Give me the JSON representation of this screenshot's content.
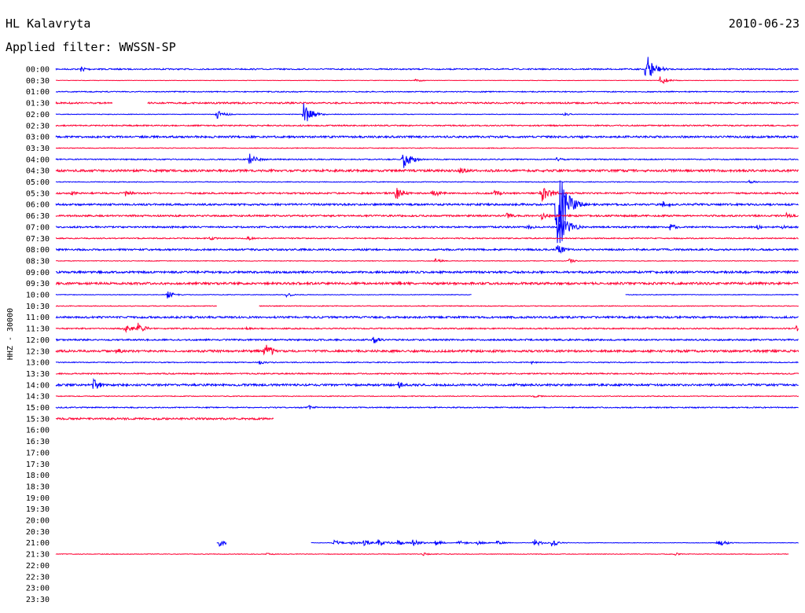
{
  "header": {
    "station": "HL Kalavryta",
    "date": "2010-06-23",
    "filter": "Applied filter: WWSSN-SP"
  },
  "chart_data": {
    "type": "line",
    "title": "",
    "ylabel": "HHZ - 30000",
    "colors": {
      "even_row": "#0000ff",
      "odd_row": "#ff0033"
    },
    "tick_labels": [
      "00:00",
      "00:30",
      "01:00",
      "01:30",
      "02:00",
      "02:30",
      "03:00",
      "03:30",
      "04:00",
      "04:30",
      "05:00",
      "05:30",
      "06:00",
      "06:30",
      "07:00",
      "07:30",
      "08:00",
      "08:30",
      "09:00",
      "09:30",
      "10:00",
      "10:30",
      "11:00",
      "11:30",
      "12:00",
      "12:30",
      "13:00",
      "13:30",
      "14:00",
      "14:30",
      "15:00",
      "15:30",
      "16:00",
      "16:30",
      "17:00",
      "17:30",
      "18:00",
      "18:30",
      "19:00",
      "19:30",
      "20:00",
      "20:30",
      "21:00",
      "21:30",
      "22:00",
      "22:30",
      "23:00",
      "23:30"
    ],
    "x_range_minutes": [
      0,
      30
    ],
    "traces": [
      {
        "row": "00:00",
        "start": 0,
        "end": 30,
        "noise": 0.8,
        "events": [
          {
            "t": 1.0,
            "amp": 4
          },
          {
            "t": 23.8,
            "amp": 24
          }
        ]
      },
      {
        "row": "00:30",
        "start": 0,
        "end": 30,
        "noise": 0.3,
        "events": [
          {
            "t": 14.5,
            "amp": 2
          },
          {
            "t": 24.4,
            "amp": 6
          }
        ]
      },
      {
        "row": "01:00",
        "start": 0,
        "end": 30,
        "noise": 0.6,
        "events": []
      },
      {
        "row": "01:30",
        "start": 0,
        "end": 30,
        "noise": 1.0,
        "events": [
          {
            "t": 14.5,
            "amp": 2
          }
        ],
        "gaps": [
          [
            2.3,
            3.7
          ]
        ]
      },
      {
        "row": "02:00",
        "start": 0,
        "end": 30,
        "noise": 0.4,
        "events": [
          {
            "t": 6.5,
            "amp": 6
          },
          {
            "t": 10.0,
            "amp": 15
          },
          {
            "t": 20.5,
            "amp": 2
          }
        ]
      },
      {
        "row": "02:30",
        "start": 0,
        "end": 30,
        "noise": 0.8,
        "events": []
      },
      {
        "row": "03:00",
        "start": 0,
        "end": 30,
        "noise": 1.2,
        "events": [
          {
            "t": 21.2,
            "amp": 2
          }
        ]
      },
      {
        "row": "03:30",
        "start": 0,
        "end": 30,
        "noise": 0.5,
        "events": []
      },
      {
        "row": "04:00",
        "start": 0,
        "end": 30,
        "noise": 0.7,
        "events": [
          {
            "t": 7.8,
            "amp": 8
          },
          {
            "t": 14.0,
            "amp": 13
          },
          {
            "t": 20.2,
            "amp": 3
          }
        ]
      },
      {
        "row": "04:30",
        "start": 0,
        "end": 30,
        "noise": 1.4,
        "events": [
          {
            "t": 16.3,
            "amp": 5
          }
        ]
      },
      {
        "row": "05:00",
        "start": 0,
        "end": 30,
        "noise": 0.5,
        "events": [
          {
            "t": 28.0,
            "amp": 2
          }
        ]
      },
      {
        "row": "05:30",
        "start": 0,
        "end": 30,
        "noise": 1.0,
        "events": [
          {
            "t": 0.6,
            "amp": 3
          },
          {
            "t": 2.8,
            "amp": 5
          },
          {
            "t": 13.7,
            "amp": 10
          },
          {
            "t": 15.2,
            "amp": 6
          },
          {
            "t": 17.7,
            "amp": 5
          },
          {
            "t": 20.0,
            "amp": 5
          },
          {
            "t": 19.6,
            "amp": 12
          }
        ]
      },
      {
        "row": "06:00",
        "start": 0,
        "end": 30,
        "noise": 1.2,
        "events": [
          {
            "t": 20.2,
            "amp": 70
          },
          {
            "t": 24.5,
            "amp": 5
          },
          {
            "t": 25.8,
            "amp": 2
          }
        ]
      },
      {
        "row": "06:30",
        "start": 0,
        "end": 30,
        "noise": 1.1,
        "events": [
          {
            "t": 18.2,
            "amp": 4
          },
          {
            "t": 19.6,
            "amp": 5
          },
          {
            "t": 29.5,
            "amp": 4
          }
        ]
      },
      {
        "row": "07:00",
        "start": 0,
        "end": 30,
        "noise": 1.0,
        "events": [
          {
            "t": 19.0,
            "amp": 4
          },
          {
            "t": 20.3,
            "amp": 30
          },
          {
            "t": 24.8,
            "amp": 5
          },
          {
            "t": 28.3,
            "amp": 4
          },
          {
            "t": 29.3,
            "amp": 3
          }
        ]
      },
      {
        "row": "07:30",
        "start": 0,
        "end": 30,
        "noise": 0.7,
        "events": [
          {
            "t": 6.2,
            "amp": 3
          },
          {
            "t": 7.7,
            "amp": 3
          }
        ]
      },
      {
        "row": "08:00",
        "start": 0,
        "end": 30,
        "noise": 1.1,
        "events": [
          {
            "t": 20.2,
            "amp": 8
          }
        ]
      },
      {
        "row": "08:30",
        "start": 0,
        "end": 30,
        "noise": 0.4,
        "events": [
          {
            "t": 15.3,
            "amp": 3
          },
          {
            "t": 20.7,
            "amp": 3
          }
        ]
      },
      {
        "row": "09:00",
        "start": 0,
        "end": 30,
        "noise": 1.3,
        "events": []
      },
      {
        "row": "09:30",
        "start": 0,
        "end": 30,
        "noise": 1.4,
        "events": [
          {
            "t": 13.8,
            "amp": 4
          },
          {
            "t": 28.0,
            "amp": 3
          }
        ]
      },
      {
        "row": "10:00",
        "start": 0,
        "end": 30,
        "noise": 0.4,
        "events": [
          {
            "t": 4.5,
            "amp": 5
          },
          {
            "t": 9.3,
            "amp": 3
          }
        ],
        "gaps": [
          [
            16.8,
            23.0
          ]
        ]
      },
      {
        "row": "10:30",
        "start": 0,
        "end": 30,
        "noise": 0.5,
        "events": [],
        "gaps": [
          [
            6.5,
            8.2
          ]
        ]
      },
      {
        "row": "11:00",
        "start": 0,
        "end": 30,
        "noise": 1.2,
        "events": []
      },
      {
        "row": "11:30",
        "start": 0,
        "end": 30,
        "noise": 0.8,
        "events": [
          {
            "t": 2.8,
            "amp": 6
          },
          {
            "t": 3.3,
            "amp": 8
          },
          {
            "t": 7.7,
            "amp": 2
          },
          {
            "t": 29.9,
            "amp": 4
          }
        ]
      },
      {
        "row": "12:00",
        "start": 0,
        "end": 30,
        "noise": 1.0,
        "events": [
          {
            "t": 12.8,
            "amp": 6
          }
        ]
      },
      {
        "row": "12:30",
        "start": 0,
        "end": 30,
        "noise": 1.4,
        "events": [
          {
            "t": 2.4,
            "amp": 5
          },
          {
            "t": 8.4,
            "amp": 14
          },
          {
            "t": 24.0,
            "amp": 2
          }
        ]
      },
      {
        "row": "13:00",
        "start": 0,
        "end": 30,
        "noise": 0.6,
        "events": [
          {
            "t": 8.2,
            "amp": 3
          },
          {
            "t": 19.2,
            "amp": 2
          }
        ]
      },
      {
        "row": "13:30",
        "start": 0,
        "end": 30,
        "noise": 0.8,
        "events": []
      },
      {
        "row": "14:00",
        "start": 0,
        "end": 30,
        "noise": 1.3,
        "events": [
          {
            "t": 1.5,
            "amp": 8
          },
          {
            "t": 13.8,
            "amp": 5
          },
          {
            "t": 18.6,
            "amp": 2
          }
        ]
      },
      {
        "row": "14:30",
        "start": 0,
        "end": 30,
        "noise": 0.5,
        "events": [
          {
            "t": 19.3,
            "amp": 2
          }
        ]
      },
      {
        "row": "15:00",
        "start": 0,
        "end": 30,
        "noise": 0.7,
        "events": [
          {
            "t": 10.2,
            "amp": 3
          }
        ]
      },
      {
        "row": "15:30",
        "start": 0,
        "end": 8.8,
        "noise": 1.2,
        "events": []
      },
      {
        "row": "21:00",
        "start": 6.5,
        "end": 30,
        "noise": 0.3,
        "events": [
          {
            "t": 6.6,
            "amp": 5
          },
          {
            "t": 11.2,
            "amp": 4
          },
          {
            "t": 11.9,
            "amp": 3
          },
          {
            "t": 12.4,
            "amp": 4
          },
          {
            "t": 13.0,
            "amp": 6
          },
          {
            "t": 13.8,
            "amp": 4
          },
          {
            "t": 14.4,
            "amp": 5
          },
          {
            "t": 15.3,
            "amp": 4
          },
          {
            "t": 16.2,
            "amp": 4
          },
          {
            "t": 17.0,
            "amp": 3
          },
          {
            "t": 17.8,
            "amp": 3
          },
          {
            "t": 19.3,
            "amp": 5
          },
          {
            "t": 20.0,
            "amp": 5
          },
          {
            "t": 26.7,
            "amp": 6
          }
        ],
        "gaps": [
          [
            6.9,
            10.3
          ]
        ]
      },
      {
        "row": "21:30",
        "start": 0,
        "end": 29.6,
        "noise": 0.4,
        "events": [
          {
            "t": 8.5,
            "amp": 2
          },
          {
            "t": 14.8,
            "amp": 2
          },
          {
            "t": 25.0,
            "amp": 2
          }
        ]
      }
    ]
  }
}
